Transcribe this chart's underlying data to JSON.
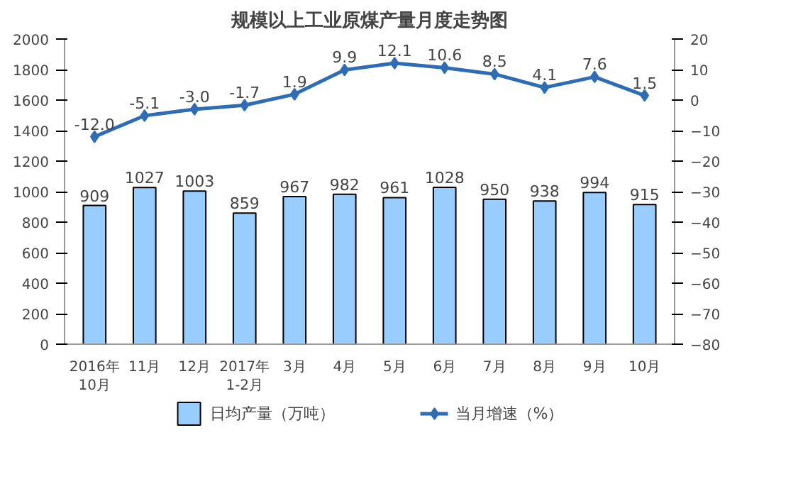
{
  "chart_data": {
    "type": "bar",
    "title": "规模以上工业原煤产量月度走势图",
    "categories": [
      "2016年\n10月",
      "11月",
      "12月",
      "2017年\n1-2月",
      "3月",
      "4月",
      "5月",
      "6月",
      "7月",
      "8月",
      "9月",
      "10月"
    ],
    "series": [
      {
        "name": "日均产量（万吨）",
        "color": "#99ccff",
        "values": [
          909,
          1027,
          1003,
          859,
          967,
          982,
          961,
          1028,
          950,
          938,
          994,
          915
        ],
        "value_labels": [
          "909",
          "1027",
          "1003",
          "859",
          "967",
          "982",
          "961",
          "1028",
          "950",
          "938",
          "994",
          "915"
        ]
      },
      {
        "name": "当月增速（%）",
        "type": "line",
        "axis": "y2",
        "color": "#2e6db4",
        "values": [
          -12.0,
          -5.1,
          -3.0,
          -1.7,
          1.9,
          9.9,
          12.1,
          10.6,
          8.5,
          4.1,
          7.6,
          1.5
        ],
        "value_labels": [
          "-12.0",
          "-5.1",
          "-3.0",
          "-1.7",
          "1.9",
          "9.9",
          "12.1",
          "10.6",
          "8.5",
          "4.1",
          "7.6",
          "1.5"
        ]
      }
    ],
    "ylim": [
      0,
      2000
    ],
    "yticks": [
      0,
      200,
      400,
      600,
      800,
      1000,
      1200,
      1400,
      1600,
      1800,
      2000
    ],
    "y2lim": [
      -80,
      20
    ],
    "y2ticks": [
      -80,
      -70,
      -60,
      -50,
      -40,
      -30,
      -20,
      -10,
      0,
      10,
      20
    ],
    "marker": "diamond",
    "legend": "bottom",
    "grid": false
  }
}
